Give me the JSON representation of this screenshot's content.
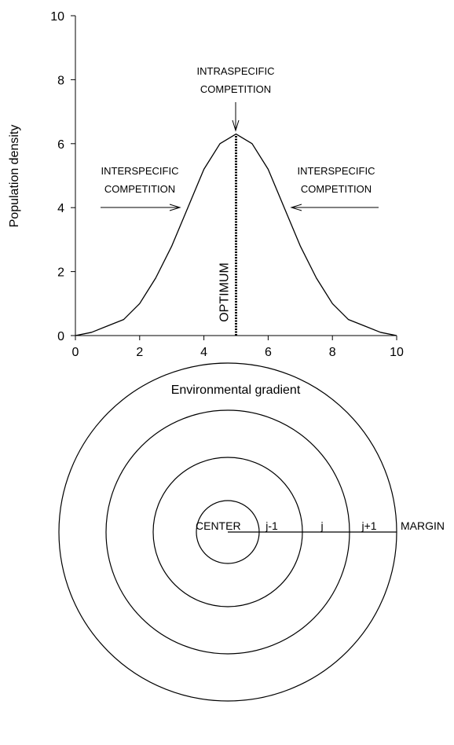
{
  "chart_data": {
    "type": "line",
    "x_label": "Environmental gradient",
    "y_label": "Population density",
    "x": [
      0,
      0.5,
      1,
      1.5,
      2,
      2.5,
      3,
      3.5,
      4,
      4.5,
      5,
      5.5,
      6,
      6.5,
      7,
      7.5,
      8,
      8.5,
      9,
      9.5,
      10
    ],
    "series": [
      {
        "name": "Population density",
        "color": "#000000",
        "values": [
          0.0,
          0.1,
          0.3,
          0.5,
          1.0,
          1.8,
          2.8,
          4.0,
          5.2,
          6.0,
          6.3,
          6.0,
          5.2,
          4.0,
          2.8,
          1.8,
          1.0,
          0.5,
          0.3,
          0.1,
          0.0
        ]
      }
    ],
    "xlim": [
      0,
      10
    ],
    "ylim": [
      0,
      10
    ],
    "xticks": [
      0,
      2,
      4,
      6,
      8,
      10
    ],
    "yticks": [
      0,
      2,
      4,
      6,
      8,
      10
    ],
    "optimum": 5,
    "optimum_label": "OPTIMUM",
    "annotations": [
      {
        "lines": [
          "INTRASPECIFIC",
          "COMPETITION"
        ]
      },
      {
        "lines": [
          "INTERSPECIFIC",
          "COMPETITION"
        ]
      },
      {
        "lines": [
          "INTERSPECIFIC",
          "COMPETITION"
        ]
      }
    ]
  },
  "diagram": {
    "labels": [
      "CENTER",
      "j-1",
      "j",
      "j+1",
      "MARGIN"
    ]
  }
}
